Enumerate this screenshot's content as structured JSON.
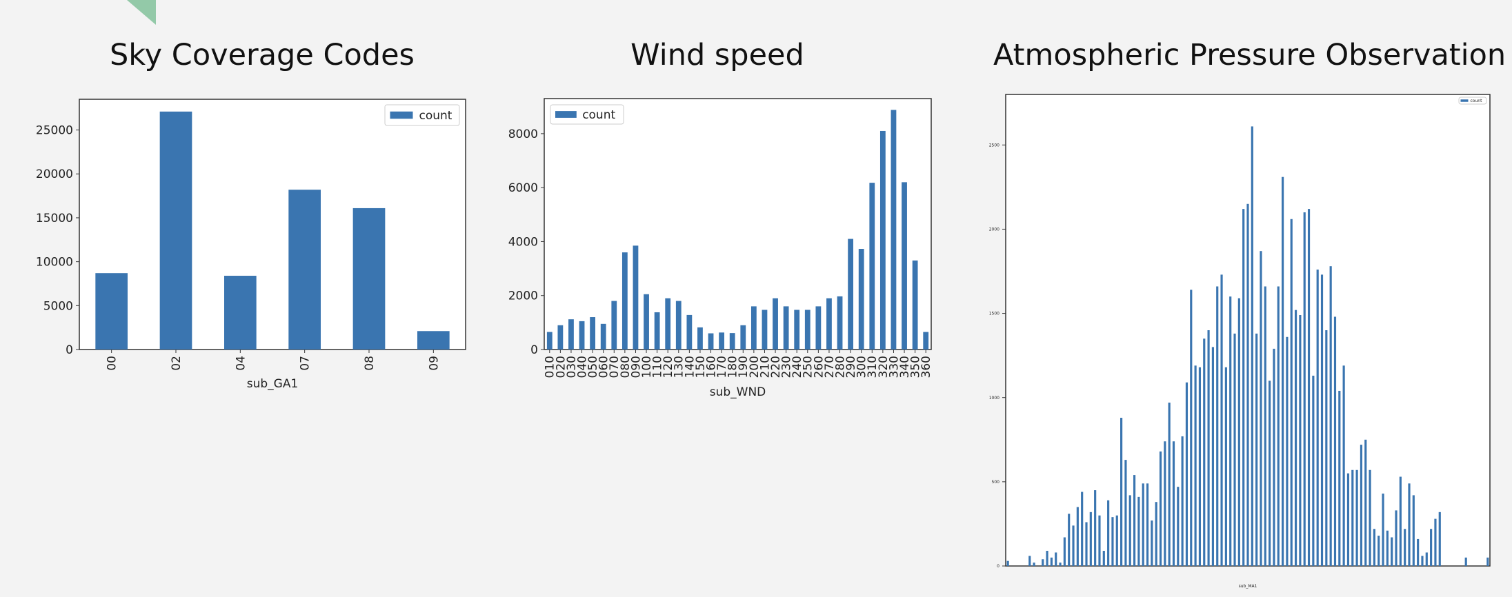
{
  "slide": {
    "titles": [
      "Sky Coverage Codes",
      "Wind speed",
      "Atmospheric Pressure Observation"
    ],
    "accent_color": "#93c9a8"
  },
  "chart_data": [
    {
      "type": "bar",
      "title": "Sky Coverage Codes",
      "categories": [
        "00",
        "02",
        "04",
        "07",
        "08",
        "09"
      ],
      "series": [
        {
          "name": "count",
          "values": [
            8700,
            27100,
            8400,
            18200,
            16100,
            2100
          ]
        }
      ],
      "xlabel": "sub_GA1",
      "ylabel": "",
      "ylim": [
        0,
        28500
      ],
      "yticks": [
        0,
        5000,
        10000,
        15000,
        20000,
        25000
      ],
      "legend": "top-right",
      "grid": false,
      "bar_color": "#3a75b0"
    },
    {
      "type": "bar",
      "title": "Wind speed",
      "categories": [
        "010",
        "020",
        "030",
        "040",
        "050",
        "060",
        "070",
        "080",
        "090",
        "100",
        "110",
        "120",
        "130",
        "140",
        "150",
        "160",
        "170",
        "180",
        "190",
        "200",
        "210",
        "220",
        "230",
        "240",
        "250",
        "260",
        "270",
        "280",
        "290",
        "300",
        "310",
        "320",
        "330",
        "340",
        "350",
        "360"
      ],
      "series": [
        {
          "name": "count",
          "values": [
            650,
            900,
            1120,
            1050,
            1200,
            950,
            1800,
            3600,
            3850,
            2050,
            1380,
            1900,
            1800,
            1280,
            820,
            600,
            630,
            610,
            900,
            1600,
            1470,
            1900,
            1600,
            1470,
            1470,
            1600,
            1900,
            1970,
            4100,
            3730,
            6180,
            8100,
            8880,
            6200,
            3300,
            650
          ]
        }
      ],
      "xlabel": "sub_WND",
      "ylabel": "",
      "ylim": [
        0,
        9300
      ],
      "yticks": [
        0,
        2000,
        4000,
        6000,
        8000
      ],
      "legend": "top-left",
      "grid": false,
      "bar_color": "#3a75b0"
    },
    {
      "type": "bar",
      "title": "Atmospheric Pressure Observation",
      "series": [
        {
          "name": "count",
          "values": [
            30,
            0,
            0,
            0,
            0,
            60,
            20,
            0,
            40,
            90,
            50,
            80,
            20,
            170,
            310,
            240,
            350,
            440,
            260,
            320,
            450,
            300,
            90,
            390,
            290,
            300,
            880,
            630,
            420,
            540,
            410,
            490,
            490,
            270,
            380,
            680,
            740,
            970,
            740,
            470,
            770,
            1090,
            1640,
            1190,
            1180,
            1350,
            1400,
            1300,
            1660,
            1730,
            1180,
            1600,
            1380,
            1590,
            2120,
            2150,
            2610,
            1380,
            1870,
            1660,
            1100,
            1290,
            1660,
            2310,
            1360,
            2060,
            1520,
            1490,
            2100,
            2120,
            1130,
            1760,
            1730,
            1400,
            1780,
            1480,
            1040,
            1190,
            550,
            570,
            570,
            720,
            750,
            570,
            220,
            180,
            430,
            210,
            170,
            330,
            530,
            220,
            490,
            420,
            160,
            60,
            80,
            220,
            280,
            320,
            0,
            0,
            0,
            0,
            0,
            50,
            0,
            0,
            0,
            0,
            50
          ]
        }
      ],
      "xlabel": "sub_MA1",
      "ylabel": "",
      "ylim": [
        0,
        2800
      ],
      "yticks": [
        0,
        500,
        1000,
        1500,
        2000,
        2500
      ],
      "legend": "top-right",
      "grid": false,
      "bar_color": "#3a75b0"
    }
  ]
}
